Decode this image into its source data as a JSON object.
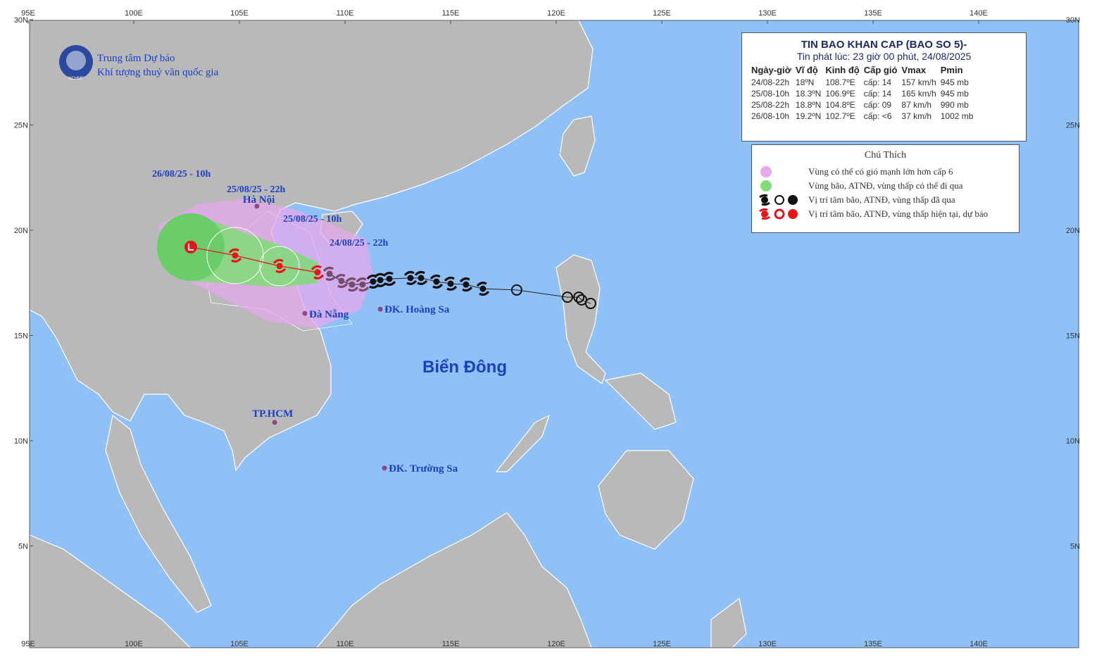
{
  "header": {
    "org_line1": "Trung tâm Dự báo",
    "org_line2": "Khí tượng thuỷ văn quốc gia",
    "logo_text": "NCHMF"
  },
  "map": {
    "lon_ticks": [
      {
        "value": 95,
        "label": "95E"
      },
      {
        "value": 100,
        "label": "100E"
      },
      {
        "value": 105,
        "label": "105E"
      },
      {
        "value": 110,
        "label": "110E"
      },
      {
        "value": 115,
        "label": "115E"
      },
      {
        "value": 120,
        "label": "120E"
      },
      {
        "value": 125,
        "label": "125E"
      },
      {
        "value": 130,
        "label": "130E"
      },
      {
        "value": 135,
        "label": "135E"
      },
      {
        "value": 140,
        "label": "140E"
      }
    ],
    "lat_ticks": [
      {
        "value": 30,
        "label": "30N"
      },
      {
        "value": 25,
        "label": "25N"
      },
      {
        "value": 20,
        "label": "20N"
      },
      {
        "value": 15,
        "label": "15N"
      },
      {
        "value": 10,
        "label": "10N"
      },
      {
        "value": 5,
        "label": "5N"
      }
    ],
    "sea_label": "Biển Đông",
    "places": [
      {
        "label": "Hà Nội",
        "lon": 105.83,
        "lat": 21.14
      },
      {
        "label": "Đà Nẵng",
        "lon": 108.1,
        "lat": 16.05
      },
      {
        "label": "ĐK. Hoàng Sa",
        "lon": 111.67,
        "lat": 16.25
      },
      {
        "label": "TP.HCM",
        "lon": 106.67,
        "lat": 10.87
      },
      {
        "label": "ĐK. Trường Sa",
        "lon": 111.87,
        "lat": 8.7
      }
    ],
    "forecast": [
      {
        "label": "24/08/25 - 22h",
        "lon": 108.7,
        "lat": 18,
        "kind": "storm"
      },
      {
        "label": "25/08/25 - 10h",
        "lon": 106.9,
        "lat": 18.3,
        "kind": "storm"
      },
      {
        "label": "25/08/25 - 22h",
        "lon": 104.8,
        "lat": 18.8,
        "kind": "storm"
      },
      {
        "label": "26/08/25 - 10h",
        "lon": 102.7,
        "lat": 19.2,
        "kind": "low"
      }
    ],
    "forecast_color": "#e8141b",
    "past_track": [
      {
        "lon": 109.27,
        "lat": 17.93,
        "kind": "storm",
        "color": "#7a4a6a"
      },
      {
        "lon": 109.83,
        "lat": 17.59,
        "kind": "storm",
        "color": "#7a4a6a"
      },
      {
        "lon": 110.33,
        "lat": 17.42,
        "kind": "storm",
        "color": "#7a4a6a"
      },
      {
        "lon": 110.83,
        "lat": 17.42,
        "kind": "storm",
        "color": "#7a4a6a"
      },
      {
        "lon": 111.33,
        "lat": 17.56,
        "kind": "storm",
        "color": "#111111"
      },
      {
        "lon": 111.67,
        "lat": 17.63,
        "kind": "storm",
        "color": "#111111"
      },
      {
        "lon": 112.1,
        "lat": 17.69,
        "kind": "storm",
        "color": "#111111"
      },
      {
        "lon": 113.1,
        "lat": 17.73,
        "kind": "storm",
        "color": "#111111"
      },
      {
        "lon": 113.6,
        "lat": 17.73,
        "kind": "storm",
        "color": "#111111"
      },
      {
        "lon": 114.33,
        "lat": 17.56,
        "kind": "storm",
        "color": "#111111"
      },
      {
        "lon": 115.0,
        "lat": 17.46,
        "kind": "storm",
        "color": "#111111"
      },
      {
        "lon": 115.73,
        "lat": 17.42,
        "kind": "storm",
        "color": "#111111"
      },
      {
        "lon": 116.53,
        "lat": 17.22,
        "kind": "storm",
        "color": "#111111"
      },
      {
        "lon": 118.13,
        "lat": 17.16,
        "kind": "low",
        "color": "#111111"
      },
      {
        "lon": 120.53,
        "lat": 16.82,
        "kind": "low",
        "color": "#111111"
      },
      {
        "lon": 121.07,
        "lat": 16.82,
        "kind": "low",
        "color": "#111111"
      },
      {
        "lon": 121.2,
        "lat": 16.69,
        "kind": "low",
        "color": "#111111"
      },
      {
        "lon": 121.63,
        "lat": 16.52,
        "kind": "low",
        "color": "#111111"
      }
    ]
  },
  "table": {
    "title": "TIN BAO KHAN CAP (BAO SO 5)-",
    "subtitle": "Tin phát lúc: 23 giờ 00 phút, 24/08/2025",
    "columns": [
      "Ngày-giờ",
      "Vĩ độ",
      "Kinh độ",
      "Cấp gió",
      "Vmax",
      "Pmin"
    ],
    "rows": [
      [
        "24/08-22h",
        "18ºN",
        "108.7ºE",
        "cấp: 14",
        "157 km/h",
        "945 mb"
      ],
      [
        "25/08-10h",
        "18.3ºN",
        "106.9ºE",
        "cấp: 14",
        "165 km/h",
        "945 mb"
      ],
      [
        "25/08-22h",
        "18.8ºN",
        "104.8ºE",
        "cấp: 09",
        "87 km/h",
        "990 mb"
      ],
      [
        "26/08-10h",
        "19.2ºN",
        "102.7ºE",
        "cấp: <6",
        "37 km/h",
        "1002 mb"
      ]
    ]
  },
  "legend": {
    "title": "Chú Thích",
    "items": [
      "Vùng có thể có gió mạnh lớn hơn cấp 6",
      "Vùng bão, ATNĐ, vùng thấp có thể đi qua",
      "Vị trí tâm bão, ATNĐ, vùng thấp đã qua",
      "Vị trí tâm bão, ATNĐ, vùng thấp hiện tại, dự báo"
    ]
  }
}
